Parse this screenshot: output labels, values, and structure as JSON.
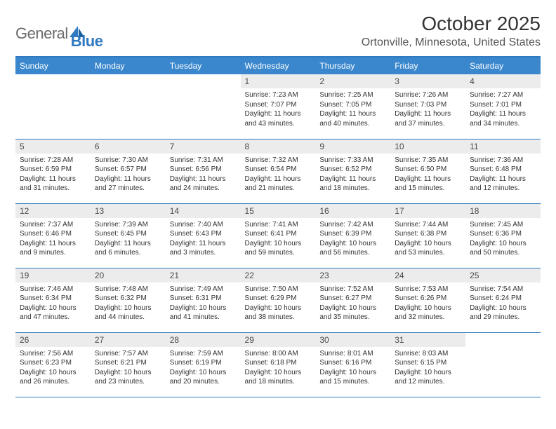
{
  "logo": {
    "text1": "General",
    "text2": "Blue"
  },
  "title": "October 2025",
  "location": "Ortonville, Minnesota, United States",
  "colors": {
    "header_bg": "#3a87cd",
    "border": "#2f7ac0",
    "daynum_bg": "#ececec",
    "text": "#333333",
    "logo_gray": "#6b6b6b",
    "logo_blue": "#2f7ac0"
  },
  "fonts": {
    "title_size": 28,
    "subtitle_size": 16,
    "weekday_size": 12,
    "daynum_size": 12,
    "body_size": 10
  },
  "weekdays": [
    "Sunday",
    "Monday",
    "Tuesday",
    "Wednesday",
    "Thursday",
    "Friday",
    "Saturday"
  ],
  "weeks": [
    [
      null,
      null,
      null,
      {
        "n": "1",
        "sr": "7:23 AM",
        "ss": "7:07 PM",
        "dl": "11 hours and 43 minutes."
      },
      {
        "n": "2",
        "sr": "7:25 AM",
        "ss": "7:05 PM",
        "dl": "11 hours and 40 minutes."
      },
      {
        "n": "3",
        "sr": "7:26 AM",
        "ss": "7:03 PM",
        "dl": "11 hours and 37 minutes."
      },
      {
        "n": "4",
        "sr": "7:27 AM",
        "ss": "7:01 PM",
        "dl": "11 hours and 34 minutes."
      }
    ],
    [
      {
        "n": "5",
        "sr": "7:28 AM",
        "ss": "6:59 PM",
        "dl": "11 hours and 31 minutes."
      },
      {
        "n": "6",
        "sr": "7:30 AM",
        "ss": "6:57 PM",
        "dl": "11 hours and 27 minutes."
      },
      {
        "n": "7",
        "sr": "7:31 AM",
        "ss": "6:56 PM",
        "dl": "11 hours and 24 minutes."
      },
      {
        "n": "8",
        "sr": "7:32 AM",
        "ss": "6:54 PM",
        "dl": "11 hours and 21 minutes."
      },
      {
        "n": "9",
        "sr": "7:33 AM",
        "ss": "6:52 PM",
        "dl": "11 hours and 18 minutes."
      },
      {
        "n": "10",
        "sr": "7:35 AM",
        "ss": "6:50 PM",
        "dl": "11 hours and 15 minutes."
      },
      {
        "n": "11",
        "sr": "7:36 AM",
        "ss": "6:48 PM",
        "dl": "11 hours and 12 minutes."
      }
    ],
    [
      {
        "n": "12",
        "sr": "7:37 AM",
        "ss": "6:46 PM",
        "dl": "11 hours and 9 minutes."
      },
      {
        "n": "13",
        "sr": "7:39 AM",
        "ss": "6:45 PM",
        "dl": "11 hours and 6 minutes."
      },
      {
        "n": "14",
        "sr": "7:40 AM",
        "ss": "6:43 PM",
        "dl": "11 hours and 3 minutes."
      },
      {
        "n": "15",
        "sr": "7:41 AM",
        "ss": "6:41 PM",
        "dl": "10 hours and 59 minutes."
      },
      {
        "n": "16",
        "sr": "7:42 AM",
        "ss": "6:39 PM",
        "dl": "10 hours and 56 minutes."
      },
      {
        "n": "17",
        "sr": "7:44 AM",
        "ss": "6:38 PM",
        "dl": "10 hours and 53 minutes."
      },
      {
        "n": "18",
        "sr": "7:45 AM",
        "ss": "6:36 PM",
        "dl": "10 hours and 50 minutes."
      }
    ],
    [
      {
        "n": "19",
        "sr": "7:46 AM",
        "ss": "6:34 PM",
        "dl": "10 hours and 47 minutes."
      },
      {
        "n": "20",
        "sr": "7:48 AM",
        "ss": "6:32 PM",
        "dl": "10 hours and 44 minutes."
      },
      {
        "n": "21",
        "sr": "7:49 AM",
        "ss": "6:31 PM",
        "dl": "10 hours and 41 minutes."
      },
      {
        "n": "22",
        "sr": "7:50 AM",
        "ss": "6:29 PM",
        "dl": "10 hours and 38 minutes."
      },
      {
        "n": "23",
        "sr": "7:52 AM",
        "ss": "6:27 PM",
        "dl": "10 hours and 35 minutes."
      },
      {
        "n": "24",
        "sr": "7:53 AM",
        "ss": "6:26 PM",
        "dl": "10 hours and 32 minutes."
      },
      {
        "n": "25",
        "sr": "7:54 AM",
        "ss": "6:24 PM",
        "dl": "10 hours and 29 minutes."
      }
    ],
    [
      {
        "n": "26",
        "sr": "7:56 AM",
        "ss": "6:23 PM",
        "dl": "10 hours and 26 minutes."
      },
      {
        "n": "27",
        "sr": "7:57 AM",
        "ss": "6:21 PM",
        "dl": "10 hours and 23 minutes."
      },
      {
        "n": "28",
        "sr": "7:59 AM",
        "ss": "6:19 PM",
        "dl": "10 hours and 20 minutes."
      },
      {
        "n": "29",
        "sr": "8:00 AM",
        "ss": "6:18 PM",
        "dl": "10 hours and 18 minutes."
      },
      {
        "n": "30",
        "sr": "8:01 AM",
        "ss": "6:16 PM",
        "dl": "10 hours and 15 minutes."
      },
      {
        "n": "31",
        "sr": "8:03 AM",
        "ss": "6:15 PM",
        "dl": "10 hours and 12 minutes."
      },
      null
    ]
  ],
  "labels": {
    "sunrise": "Sunrise:",
    "sunset": "Sunset:",
    "daylight": "Daylight:"
  }
}
